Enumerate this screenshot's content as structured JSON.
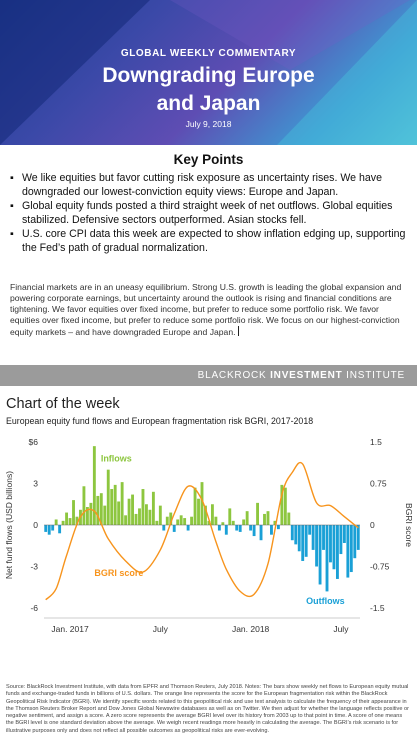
{
  "header": {
    "kicker": "GLOBAL WEEKLY COMMENTARY",
    "title_line1": "Downgrading Europe",
    "title_line2": "and Japan",
    "date": "July 9, 2018"
  },
  "key_points": {
    "title": "Key Points",
    "items": [
      "We like equities but favor cutting risk exposure as uncertainty rises. We have downgraded our lowest-conviction equity views: Europe and Japan.",
      "Global equity funds posted a third straight week of net outflows. Global equities stabilized. Defensive sectors outperformed. Asian stocks fell.",
      "U.S. core CPI data this week are expected to show inflation edging up, supporting the Fed’s path of gradual normalization."
    ]
  },
  "body_paragraph": "Financial markets are in an uneasy equilibrium. Strong U.S. growth is leading the global expansion and powering corporate earnings, but uncertainty around the outlook is rising and financial conditions are tightening. We favor equities over fixed income, but prefer to reduce some portfolio risk. We favor equities over fixed income, but prefer to reduce some portfolio risk. We focus on our highest-conviction equity markets – and have downgraded Europe and Japan.",
  "brand": {
    "prefix": "BLACKROCK ",
    "bold": "INVESTMENT",
    "suffix": " INSTITUTE"
  },
  "chart_section": {
    "heading": "Chart of the week",
    "subtitle": "European equity fund flows and European fragmentation risk BGRI, 2017-2018"
  },
  "chart_data": {
    "type": "bar",
    "title": "European equity fund flows and European fragmentation risk BGRI, 2017-2018",
    "ylabel": "Net fund flows (USD billions)",
    "y2label": "BGRI score",
    "ylim": [
      -6,
      6
    ],
    "y2lim": [
      -1.5,
      1.5
    ],
    "y_ticks": [
      "$6",
      "3",
      "0",
      "-3",
      "-6"
    ],
    "y2_ticks": [
      "1.5",
      "0.75",
      "0",
      "-0.75",
      "-1.5"
    ],
    "x_ticks": [
      "Jan. 2017",
      "July",
      "Jan. 2018",
      "July"
    ],
    "series": [
      {
        "name": "Inflows",
        "kind": "bar",
        "color": "#8dc63f",
        "values": [
          -0.5,
          -0.7,
          -0.4,
          0.4,
          -0.6,
          0.3,
          0.9,
          0.5,
          1.8,
          0.6,
          1.1,
          2.8,
          1.3,
          1.6,
          5.7,
          2.1,
          2.3,
          1.4,
          4.0,
          2.6,
          2.9,
          1.7,
          3.1,
          0.7,
          1.9,
          2.2,
          0.8,
          1.2,
          2.6,
          1.5,
          1.1,
          2.4,
          0.3,
          1.4,
          -0.4,
          0.6,
          0.9,
          -0.5,
          0.4,
          0.7,
          0.5,
          -0.4,
          0.6,
          2.7,
          1.9,
          3.1,
          1.4,
          0.3,
          1.5,
          0.6,
          -0.4,
          0.2,
          -0.7,
          1.2,
          0.3,
          -0.4,
          -0.5,
          0.4,
          1.0,
          -0.4,
          -0.8,
          1.6,
          -1.1,
          0.8,
          1.0,
          -0.7,
          0.3,
          -0.3,
          2.9,
          2.7,
          0.9,
          -1.1,
          -1.4,
          -1.9,
          -2.6,
          -2.3,
          -0.7,
          -1.8,
          -3.0,
          -4.3,
          -1.8,
          -4.8,
          -2.7,
          -3.2,
          -3.9,
          -2.1,
          -1.3,
          -3.8,
          -3.4,
          -2.4,
          -1.8
        ]
      },
      {
        "name": "Outflows",
        "kind": "bar",
        "color": "#1aa0d6"
      },
      {
        "name": "BGRI score",
        "kind": "line",
        "axis": "right",
        "color": "#f7941d",
        "x": [
          0,
          3,
          6,
          10,
          14,
          18,
          23,
          28,
          33,
          37,
          41,
          45,
          49,
          52,
          56,
          60,
          64,
          68,
          71,
          74,
          78,
          82,
          86,
          90
        ],
        "values": [
          -1.35,
          -1.15,
          -0.55,
          0.15,
          0.25,
          -0.25,
          -0.65,
          -0.85,
          -0.45,
          0.2,
          0.7,
          0.45,
          -0.3,
          -0.8,
          -1.2,
          -1.25,
          -0.7,
          0.55,
          0.95,
          1.1,
          0.4,
          0.35,
          0.15,
          -0.05
        ]
      }
    ],
    "annotations": [
      "Inflows",
      "BGRI score",
      "Outflows"
    ],
    "grid": false,
    "legend": "none"
  },
  "source_note": "Source: BlackRock Investment Institute, with data from EPFR and Thomson Reuters, July 2018. Notes: The bars show weekly net flows to European equity mutual funds and exchange-traded funds in billions of U.S. dollars. The orange line represents the score for the European fragmentation risk within the BlackRock Geopolitical Risk Indicator (BGRI). We identify specific words related to this geopolitical risk and use text analysis to calculate the frequency of their appearance in the Thomson Reuters Broker Report and Dow Jones Global Newswire databases as well as on Twitter. We then adjust for whether the language reflects positive or negative sentiment, and assign a score. A zero score represents the average BGRI level over its history from 2003 up to that point in time. A score of one means the BGRI level is one standard deviation above the average. We weigh recent readings more heavily in calculating the average. The BGRI’s risk scenario is for illustrative purposes only and does not reflect all possible outcomes as geopolitical risks are ever-evolving."
}
